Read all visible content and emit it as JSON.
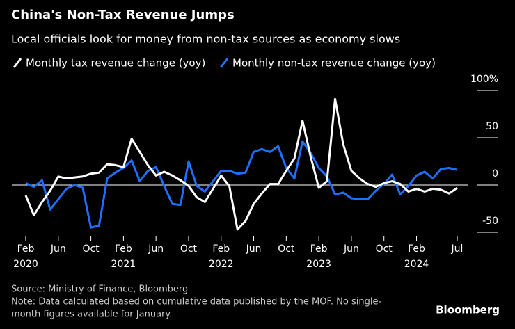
{
  "chart_data": {
    "type": "line",
    "title": "China's Non-Tax Revenue Jumps",
    "subtitle": "Local officials look for money from non-tax sources as economy slows",
    "x": [
      "2020-02",
      "2020-03",
      "2020-04",
      "2020-05",
      "2020-06",
      "2020-07",
      "2020-08",
      "2020-09",
      "2020-10",
      "2020-11",
      "2020-12",
      "2021-01",
      "2021-02",
      "2021-03",
      "2021-04",
      "2021-05",
      "2021-06",
      "2021-07",
      "2021-08",
      "2021-09",
      "2021-10",
      "2021-11",
      "2021-12",
      "2022-01",
      "2022-02",
      "2022-03",
      "2022-04",
      "2022-05",
      "2022-06",
      "2022-07",
      "2022-08",
      "2022-09",
      "2022-10",
      "2022-11",
      "2022-12",
      "2023-01",
      "2023-02",
      "2023-03",
      "2023-04",
      "2023-05",
      "2023-06",
      "2023-07",
      "2023-08",
      "2023-09",
      "2023-10",
      "2023-11",
      "2023-12",
      "2024-01",
      "2024-02",
      "2024-03",
      "2024-04",
      "2024-05",
      "2024-06",
      "2024-07"
    ],
    "series": [
      {
        "name": "Monthly tax revenue change (yoy)",
        "color": "#ffffff",
        "values": [
          -11,
          -32,
          -18,
          -6,
          9,
          7,
          8,
          9,
          12,
          13,
          22,
          21,
          19,
          49,
          35,
          21,
          10,
          14,
          10,
          5,
          -1,
          -13,
          -18,
          -4,
          10,
          -1,
          -47,
          -38,
          -20,
          -9,
          1,
          1,
          15,
          28,
          68,
          30,
          -3,
          4,
          91,
          43,
          15,
          7,
          1,
          -2,
          2,
          4,
          1,
          -7,
          -4,
          -7,
          -4,
          -5,
          -9,
          -3
        ]
      },
      {
        "name": "Monthly non-tax revenue change (yoy)",
        "color": "#1f6fff",
        "values": [
          2,
          -2,
          5,
          -26,
          -15,
          -4,
          0,
          -3,
          -45,
          -43,
          7,
          13,
          18,
          26,
          4,
          15,
          19,
          -1,
          -20,
          -21,
          25,
          -1,
          -7,
          4,
          15,
          15,
          12,
          13,
          35,
          38,
          35,
          41,
          18,
          7,
          46,
          34,
          18,
          9,
          -10,
          -8,
          -14,
          -15,
          -15,
          -6,
          1,
          11,
          -10,
          -1,
          10,
          14,
          7,
          17,
          18,
          16
        ]
      }
    ],
    "ylim": [
      -55,
      110
    ],
    "yticks": [
      {
        "value": 100,
        "label": "100%"
      },
      50,
      0,
      -50
    ],
    "xticks": [
      {
        "value": "2020-02",
        "label": "Feb"
      },
      {
        "value": "2020-06",
        "label": "Jun"
      },
      {
        "value": "2020-10",
        "label": "Oct"
      },
      {
        "value": "2021-02",
        "label": "Feb"
      },
      {
        "value": "2021-06",
        "label": "Jun"
      },
      {
        "value": "2021-10",
        "label": "Oct"
      },
      {
        "value": "2022-02",
        "label": "Feb"
      },
      {
        "value": "2022-06",
        "label": "Jun"
      },
      {
        "value": "2022-10",
        "label": "Oct"
      },
      {
        "value": "2023-02",
        "label": "Feb"
      },
      {
        "value": "2023-06",
        "label": "Jun"
      },
      {
        "value": "2023-10",
        "label": "Oct"
      },
      {
        "value": "2024-02",
        "label": "Feb"
      },
      {
        "value": "2024-07",
        "label": "Jul"
      }
    ],
    "year_labels": [
      {
        "value": "2020-02",
        "label": "2020"
      },
      {
        "value": "2021-02",
        "label": "2021"
      },
      {
        "value": "2022-02",
        "label": "2022"
      },
      {
        "value": "2023-02",
        "label": "2023"
      },
      {
        "value": "2024-02",
        "label": "2024"
      }
    ],
    "source": "Source: Ministry of Finance, Bloomberg",
    "note_lines": [
      "Note: Data calculated based on cumulative data published by the MOF. No single-",
      "month figures available for January."
    ],
    "brand": "Bloomberg"
  }
}
